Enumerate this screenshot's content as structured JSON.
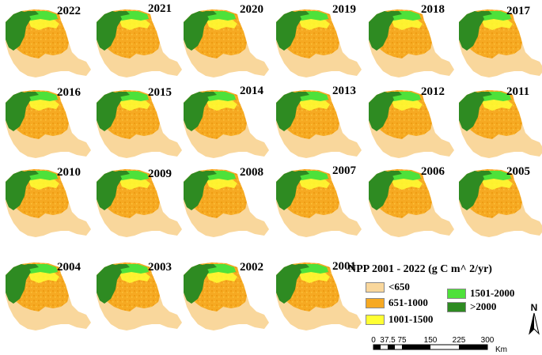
{
  "years": [
    "2022",
    "2021",
    "2020",
    "2019",
    "2018",
    "2017",
    "2016",
    "2015",
    "2014",
    "2013",
    "2012",
    "2011",
    "2010",
    "2009",
    "2008",
    "2007",
    "2006",
    "2005",
    "2004",
    "2003",
    "2002",
    "2001"
  ],
  "legend": {
    "title": "NPP 2001 - 2022 (g C m^ 2/yr)",
    "classes": [
      {
        "label": "<650",
        "color": "#f9d79c"
      },
      {
        "label": "651-1000",
        "color": "#f6a922"
      },
      {
        "label": "1001-1500",
        "color": "#ffff33"
      },
      {
        "label": "1501-2000",
        "color": "#4ee13a"
      },
      {
        "label": ">2000",
        "color": "#2e8b22"
      }
    ]
  },
  "north_arrow": "N",
  "scale_bar": {
    "ticks": [
      "0",
      "37.5",
      "75",
      "150",
      "225",
      "300"
    ],
    "unit": "Km"
  }
}
